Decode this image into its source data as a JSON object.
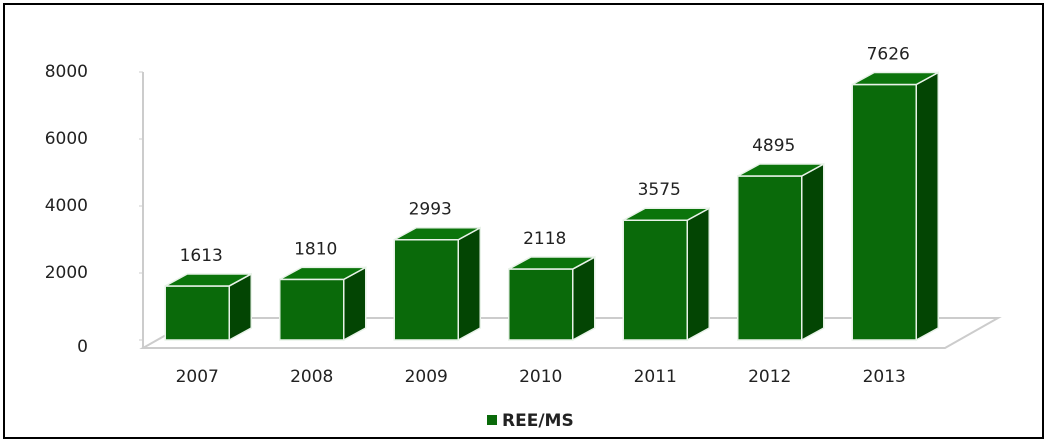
{
  "chart_data": {
    "type": "bar3d",
    "categories": [
      "2007",
      "2008",
      "2009",
      "2010",
      "2011",
      "2012",
      "2013"
    ],
    "series": [
      {
        "name": "REE/MS",
        "color": "#0a6a0a",
        "values": [
          1613,
          1810,
          2993,
          2118,
          3575,
          4895,
          7626
        ]
      }
    ],
    "ylim": [
      0,
      8000
    ],
    "yticks": [
      0,
      2000,
      4000,
      6000,
      8000
    ],
    "legend": "bottom"
  }
}
